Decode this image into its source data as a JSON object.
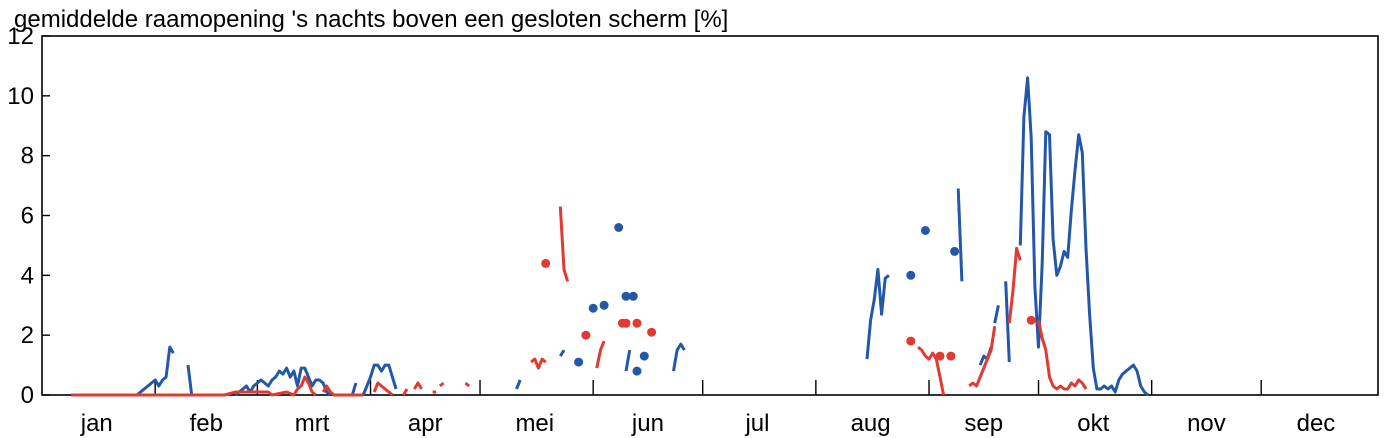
{
  "chart_data": {
    "type": "line",
    "title": "gemiddelde raamopening 's nachts boven een gesloten scherm [%]",
    "xlabel": "",
    "ylabel": "",
    "ylim": [
      0,
      12
    ],
    "xlim": [
      0,
      366
    ],
    "yticks": [
      0,
      2,
      4,
      6,
      8,
      10,
      12
    ],
    "months": [
      {
        "label": "jan",
        "start": 0,
        "center": 15
      },
      {
        "label": "feb",
        "start": 31,
        "center": 45
      },
      {
        "label": "mrt",
        "start": 59,
        "center": 74
      },
      {
        "label": "apr",
        "start": 90,
        "center": 105
      },
      {
        "label": "mei",
        "start": 120,
        "center": 135
      },
      {
        "label": "jun",
        "start": 151,
        "center": 166
      },
      {
        "label": "jul",
        "start": 181,
        "center": 196
      },
      {
        "label": "aug",
        "start": 212,
        "center": 227
      },
      {
        "label": "sep",
        "start": 243,
        "center": 258
      },
      {
        "label": "okt",
        "start": 273,
        "center": 288
      },
      {
        "label": "nov",
        "start": 304,
        "center": 319
      },
      {
        "label": "dec",
        "start": 334,
        "center": 349
      }
    ],
    "grid": false,
    "legend": "none",
    "series": [
      {
        "color": "#2358a8",
        "segments": [
          [
            [
              8,
              0
            ],
            [
              26,
              0
            ],
            [
              27,
              0.1
            ],
            [
              28,
              0.2
            ],
            [
              29,
              0.3
            ],
            [
              30,
              0.4
            ],
            [
              31,
              0.5
            ],
            [
              32,
              0.3
            ],
            [
              33,
              0.5
            ],
            [
              34,
              0.6
            ],
            [
              35,
              1.6
            ],
            [
              36,
              1.4
            ]
          ],
          [
            [
              40,
              1.0
            ],
            [
              41,
              0
            ]
          ],
          [
            [
              53,
              0
            ],
            [
              54,
              0.1
            ],
            [
              55,
              0.2
            ],
            [
              56,
              0.3
            ],
            [
              57,
              0.1
            ],
            [
              58,
              0.3
            ],
            [
              59,
              0.4
            ],
            [
              60,
              0.5
            ],
            [
              61,
              0.4
            ],
            [
              62,
              0.3
            ],
            [
              63,
              0.5
            ],
            [
              64,
              0.6
            ],
            [
              65,
              0.8
            ],
            [
              66,
              0.7
            ],
            [
              67,
              0.9
            ],
            [
              68,
              0.6
            ],
            [
              69,
              0.8
            ],
            [
              70,
              0.3
            ],
            [
              71,
              0.9
            ],
            [
              72,
              0.9
            ],
            [
              73,
              0.6
            ],
            [
              74,
              0.3
            ],
            [
              75,
              0.5
            ],
            [
              76,
              0.5
            ],
            [
              77,
              0.4
            ],
            [
              78,
              0.1
            ],
            [
              79,
              0
            ]
          ],
          [
            [
              85,
              0
            ],
            [
              86,
              0.4
            ]
          ],
          [
            [
              88,
              0
            ],
            [
              89,
              0.3
            ],
            [
              90,
              0.6
            ],
            [
              91,
              1.0
            ],
            [
              92,
              1.0
            ],
            [
              93,
              0.8
            ],
            [
              94,
              1.0
            ],
            [
              95,
              1.0
            ],
            [
              96,
              0.6
            ],
            [
              97,
              0.2
            ]
          ],
          [
            [
              130,
              0.2
            ],
            [
              131,
              0.5
            ]
          ],
          [
            [
              142,
              1.3
            ],
            [
              143,
              1.5
            ]
          ],
          [
            [
              160,
              0.8
            ],
            [
              161,
              1.5
            ]
          ],
          [
            [
              173,
              0.8
            ],
            [
              174,
              1.5
            ],
            [
              175,
              1.7
            ],
            [
              176,
              1.5
            ]
          ],
          [
            [
              226,
              1.2
            ],
            [
              227,
              2.5
            ],
            [
              228,
              3.2
            ],
            [
              229,
              4.2
            ],
            [
              230,
              2.7
            ],
            [
              231,
              3.9
            ],
            [
              232,
              4.0
            ]
          ],
          [
            [
              251,
              6.9
            ],
            [
              252,
              3.8
            ]
          ],
          [
            [
              257,
              1.0
            ],
            [
              258,
              1.3
            ],
            [
              259,
              1.2
            ],
            [
              260,
              1.6
            ]
          ],
          [
            [
              261,
              2.4
            ],
            [
              262,
              3.0
            ]
          ],
          [
            [
              264,
              3.8
            ],
            [
              265,
              1.1
            ]
          ],
          [
            [
              268,
              5.0
            ],
            [
              269,
              9.3
            ],
            [
              270,
              10.6
            ],
            [
              271,
              8.6
            ],
            [
              272,
              3.6
            ],
            [
              273,
              1.6
            ],
            [
              274,
              4.4
            ],
            [
              275,
              8.8
            ],
            [
              276,
              8.7
            ],
            [
              277,
              5.2
            ],
            [
              278,
              4.0
            ],
            [
              279,
              4.3
            ],
            [
              280,
              4.8
            ],
            [
              281,
              4.6
            ],
            [
              282,
              6.2
            ],
            [
              283,
              7.5
            ],
            [
              284,
              8.7
            ],
            [
              285,
              8.1
            ],
            [
              286,
              4.9
            ],
            [
              287,
              2.7
            ],
            [
              288,
              0.9
            ],
            [
              289,
              0.2
            ],
            [
              290,
              0.2
            ],
            [
              291,
              0.3
            ],
            [
              292,
              0.2
            ],
            [
              293,
              0.3
            ],
            [
              294,
              0.1
            ],
            [
              295,
              0.5
            ],
            [
              296,
              0.7
            ],
            [
              297,
              0.8
            ],
            [
              298,
              0.9
            ],
            [
              299,
              1.0
            ],
            [
              300,
              0.8
            ],
            [
              301,
              0.3
            ],
            [
              302,
              0.1
            ],
            [
              303,
              0
            ]
          ]
        ],
        "points": [
          [
            147,
            1.1
          ],
          [
            151,
            2.9
          ],
          [
            154,
            3.0
          ],
          [
            158,
            5.6
          ],
          [
            160,
            3.3
          ],
          [
            162,
            3.3
          ],
          [
            163,
            0.8
          ],
          [
            165,
            1.3
          ],
          [
            238,
            4.0
          ],
          [
            242,
            5.5
          ],
          [
            250,
            4.8
          ]
        ]
      },
      {
        "color": "#e03a32",
        "segments": [
          [
            [
              8,
              0
            ],
            [
              50,
              0
            ],
            [
              53,
              0.1
            ],
            [
              62,
              0.1
            ],
            [
              63,
              0
            ],
            [
              67,
              0.1
            ],
            [
              69,
              0
            ],
            [
              70,
              0.2
            ],
            [
              71,
              0.3
            ],
            [
              72,
              0.6
            ],
            [
              73,
              0.4
            ],
            [
              74,
              0.1
            ],
            [
              75,
              0
            ]
          ],
          [
            [
              77,
              0.1
            ],
            [
              78,
              0.3
            ],
            [
              79,
              0.1
            ],
            [
              80,
              0
            ],
            [
              88,
              0
            ]
          ],
          [
            [
              91,
              0.1
            ],
            [
              92,
              0.4
            ],
            [
              93,
              0.3
            ],
            [
              94,
              0.2
            ],
            [
              96,
              0
            ]
          ],
          [
            [
              99,
              0
            ],
            [
              100,
              0.2
            ]
          ],
          [
            [
              102,
              0.2
            ],
            [
              103,
              0.4
            ],
            [
              104,
              0.2
            ]
          ],
          [
            [
              107,
              0.1
            ],
            [
              108,
              0.1
            ]
          ],
          [
            [
              109,
              0.3
            ],
            [
              110,
              0.4
            ]
          ],
          [
            [
              116,
              0.4
            ],
            [
              117,
              0.3
            ]
          ],
          [
            [
              134,
              1.1
            ],
            [
              135,
              1.2
            ],
            [
              136,
              0.9
            ],
            [
              137,
              1.2
            ],
            [
              138,
              1.1
            ]
          ],
          [
            [
              142,
              6.3
            ],
            [
              143,
              4.2
            ],
            [
              144,
              3.8
            ]
          ],
          [
            [
              152,
              0.9
            ],
            [
              153,
              1.5
            ],
            [
              154,
              1.8
            ]
          ],
          [
            [
              240,
              1.6
            ],
            [
              241,
              1.5
            ],
            [
              242,
              1.3
            ],
            [
              243,
              1.2
            ],
            [
              244,
              1.4
            ],
            [
              245,
              1.2
            ],
            [
              246,
              0.6
            ],
            [
              247,
              0
            ]
          ],
          [
            [
              254,
              0.3
            ],
            [
              255,
              0.4
            ],
            [
              256,
              0.3
            ],
            [
              257,
              0.6
            ],
            [
              258,
              0.9
            ],
            [
              259,
              1.2
            ],
            [
              260,
              1.5
            ],
            [
              261,
              2.3
            ]
          ],
          [
            [
              265,
              2.4
            ],
            [
              266,
              3.5
            ],
            [
              267,
              4.9
            ],
            [
              268,
              4.5
            ]
          ],
          [
            [
              273,
              2.5
            ],
            [
              274,
              1.9
            ],
            [
              275,
              1.5
            ],
            [
              276,
              0.6
            ],
            [
              277,
              0.3
            ],
            [
              278,
              0.2
            ],
            [
              279,
              0.3
            ],
            [
              280,
              0.2
            ],
            [
              281,
              0.2
            ],
            [
              282,
              0.4
            ],
            [
              283,
              0.3
            ],
            [
              284,
              0.5
            ],
            [
              285,
              0.4
            ],
            [
              286,
              0.2
            ]
          ]
        ],
        "points": [
          [
            138,
            4.4
          ],
          [
            149,
            2.0
          ],
          [
            159,
            2.4
          ],
          [
            160,
            2.4
          ],
          [
            163,
            2.4
          ],
          [
            167,
            2.1
          ],
          [
            238,
            1.8
          ],
          [
            246,
            1.3
          ],
          [
            249,
            1.3
          ],
          [
            271,
            2.5
          ]
        ]
      }
    ]
  }
}
